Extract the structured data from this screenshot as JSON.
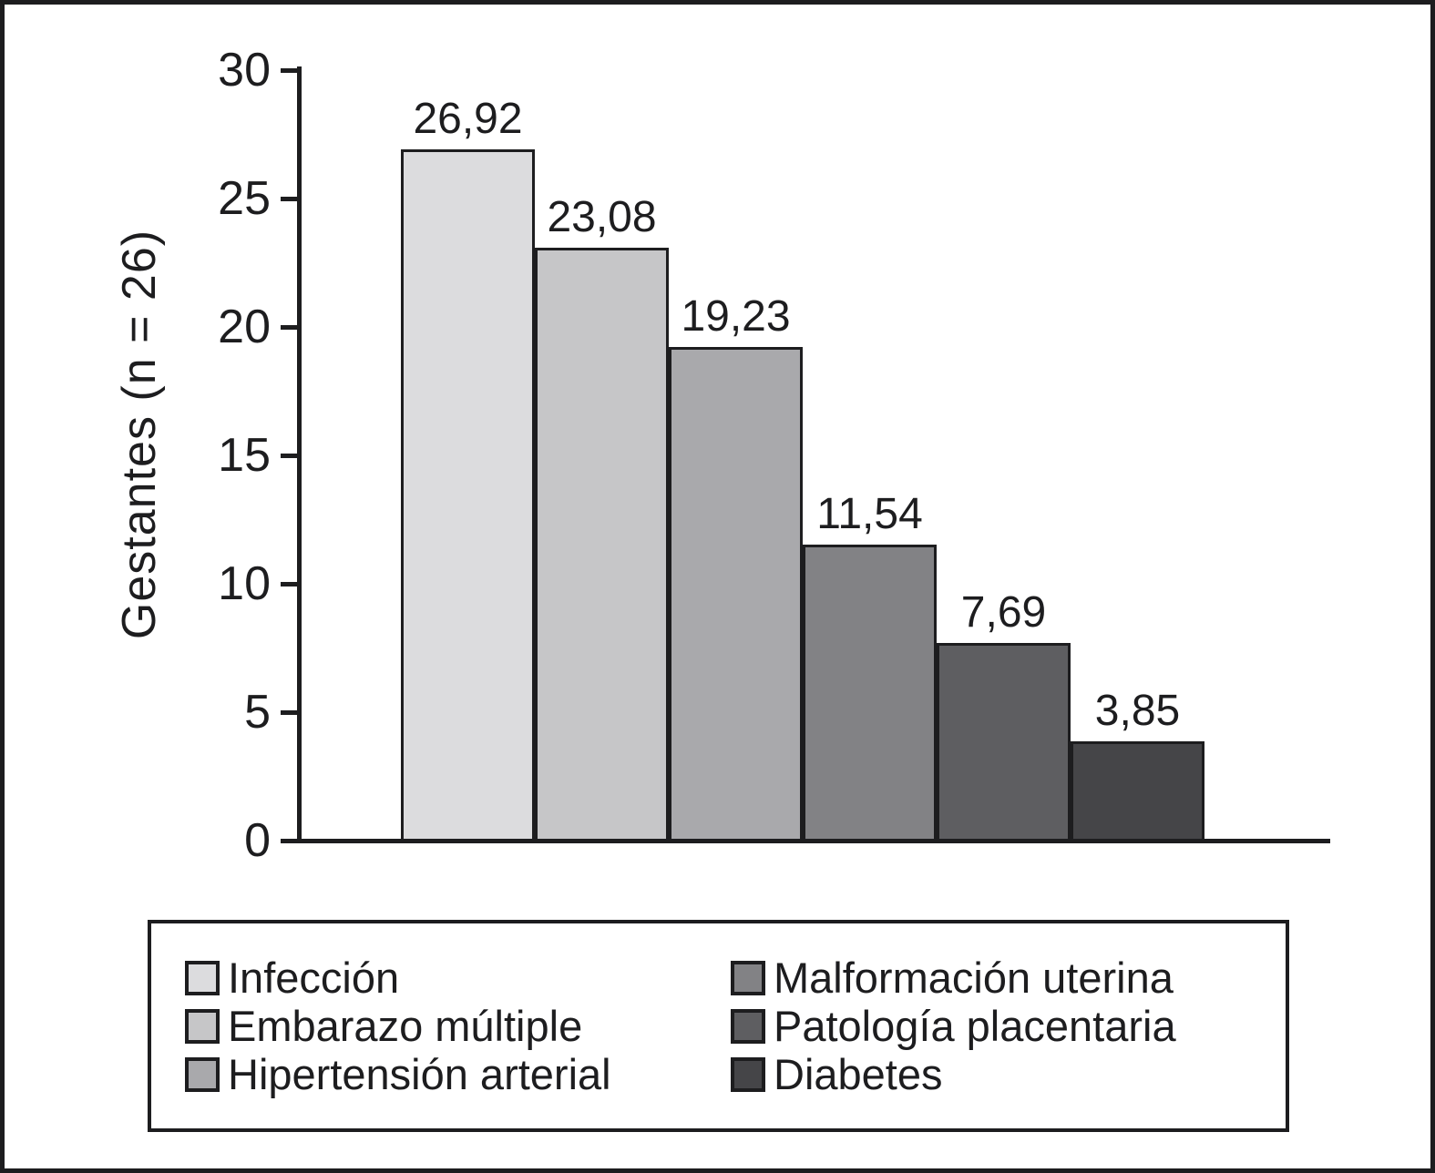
{
  "colors": {
    "ink": "#1d1d1f",
    "background": "#ffffff"
  },
  "chart_data": {
    "type": "bar",
    "title": "",
    "xlabel": "",
    "ylabel": "Gestantes (n = 26)",
    "ylim": [
      0,
      30
    ],
    "yticks": [
      0,
      5,
      10,
      15,
      20,
      25,
      30
    ],
    "ytick_labels": [
      "0",
      "5",
      "10",
      "15",
      "20",
      "25",
      "30"
    ],
    "grid": false,
    "legend_position": "bottom",
    "categories": [
      "Infección",
      "Embarazo múltiple",
      "Hipertensión arterial",
      "Malformación uterina",
      "Patología placentaria",
      "Diabetes"
    ],
    "values": [
      26.92,
      23.08,
      19.23,
      11.54,
      7.69,
      3.85
    ],
    "value_labels": [
      "26,92",
      "23,08",
      "19,23",
      "11,54",
      "7,69",
      "3,85"
    ],
    "bar_colors": [
      "#dcdcde",
      "#c6c6c8",
      "#a9a9ac",
      "#828285",
      "#5e5e61",
      "#454548"
    ],
    "legend_columns": [
      [
        "Infección",
        "Embarazo múltiple",
        "Hipertensión arterial"
      ],
      [
        "Malformación uterina",
        "Patología placentaria",
        "Diabetes"
      ]
    ]
  }
}
